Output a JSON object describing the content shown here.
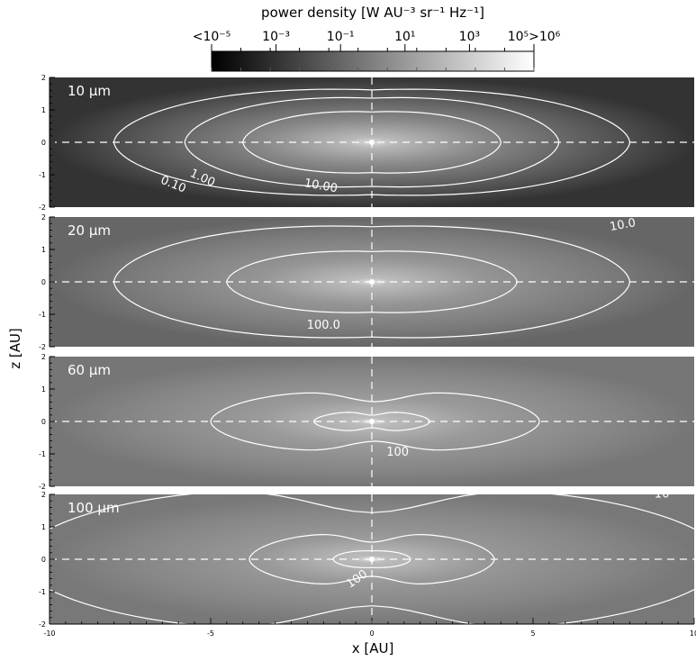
{
  "colorbar": {
    "title": "power density [W AU⁻³ sr⁻¹ Hz⁻¹]",
    "tick_labels": [
      "<10⁻⁵",
      "10⁻³",
      "10⁻¹",
      "10¹",
      "10³",
      "10⁵>10⁶"
    ],
    "log_min": -5,
    "log_max": 6,
    "colormap": "linear grayscale, black to white"
  },
  "axes": {
    "xlabel": "x [AU]",
    "ylabel": "z [AU]",
    "xlim": [
      -10,
      10
    ],
    "zlim": [
      -2,
      2
    ],
    "x_ticks": [
      -10,
      -5,
      0,
      5,
      10
    ],
    "x_tick_labels": [
      "-10",
      "-5",
      "0",
      "5",
      "10"
    ],
    "z_ticks": [
      -2,
      -1,
      0,
      1,
      2
    ],
    "z_tick_labels": [
      "-2",
      "-1",
      "0",
      "1",
      "2"
    ]
  },
  "chart_data": {
    "type": "heatmap",
    "panels": [
      {
        "label": "10 μm",
        "contours": [
          {
            "label": "0.10",
            "x_extent_at_midplane": [
              -8.0,
              8.0
            ]
          },
          {
            "label": "1.00",
            "x_extent_at_midplane": [
              -5.8,
              5.8
            ]
          },
          {
            "label": "10.00",
            "x_extent_at_midplane": [
              -4.0,
              4.0
            ]
          }
        ]
      },
      {
        "label": "20 μm",
        "contours": [
          {
            "label": "10.0",
            "x_extent_at_midplane": [
              -8.0,
              8.0
            ]
          },
          {
            "label": "100.0",
            "x_extent_at_midplane": [
              -4.5,
              4.5
            ]
          }
        ]
      },
      {
        "label": "60 μm",
        "contours": [
          {
            "label": "100",
            "x_extent_at_midplane": [
              -5.0,
              5.2
            ]
          },
          {
            "label": "",
            "x_extent_at_midplane": [
              -1.8,
              1.8
            ]
          }
        ]
      },
      {
        "label": "100 μm",
        "contours": [
          {
            "label": "10",
            "x_extent_at_midplane": [
              -11.0,
              11.0
            ]
          },
          {
            "label": "100",
            "x_extent_at_midplane": [
              -3.8,
              3.8
            ]
          },
          {
            "label": "",
            "x_extent_at_midplane": [
              -1.2,
              1.2
            ]
          }
        ]
      }
    ]
  }
}
